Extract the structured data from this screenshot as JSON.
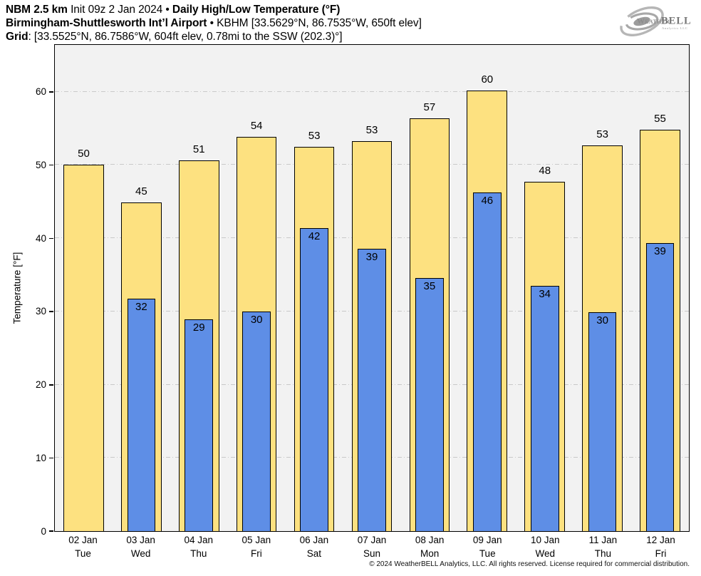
{
  "header": {
    "line1": {
      "bold1": "NBM 2.5 km",
      "regular": " Init 09z 2 Jan 2024 • ",
      "bold2": "Daily High/Low Temperature (°F)"
    },
    "line2": {
      "bold": "Birmingham-Shuttlesworth Int’l Airport",
      "regular": " • KBHM [33.5629°N, 86.7535°W, 650ft elev]"
    },
    "line3": {
      "bold": "Grid",
      "regular": ": [33.5525°N, 86.7586°W, 604ft elev, 0.78mi to the SSW (202.3)°]"
    }
  },
  "logo": {
    "weather": "Weather",
    "bell": "BELL",
    "sub": "Analytics LLC"
  },
  "chart_data": {
    "type": "bar",
    "title": "Daily High/Low Temperature (°F)",
    "ylabel": "Temperature [°F]",
    "ylim": [
      0,
      66.4
    ],
    "yticks": [
      0,
      10,
      20,
      30,
      40,
      50,
      60
    ],
    "grid": "dash-dot horizontal at every 10°F",
    "plot_background": "#f2f2f2",
    "gridline_color": "#c9c9c9",
    "categories": [
      {
        "date": "02 Jan",
        "day": "Tue"
      },
      {
        "date": "03 Jan",
        "day": "Wed"
      },
      {
        "date": "04 Jan",
        "day": "Thu"
      },
      {
        "date": "05 Jan",
        "day": "Fri"
      },
      {
        "date": "06 Jan",
        "day": "Sat"
      },
      {
        "date": "07 Jan",
        "day": "Sun"
      },
      {
        "date": "08 Jan",
        "day": "Mon"
      },
      {
        "date": "09 Jan",
        "day": "Tue"
      },
      {
        "date": "10 Jan",
        "day": "Wed"
      },
      {
        "date": "11 Jan",
        "day": "Thu"
      },
      {
        "date": "12 Jan",
        "day": "Fri"
      }
    ],
    "series": [
      {
        "name": "High",
        "color": "#fde180",
        "labels": [
          50,
          45,
          51,
          54,
          53,
          53,
          57,
          60,
          48,
          53,
          55
        ],
        "values": [
          50.1,
          45.0,
          50.7,
          53.9,
          52.6,
          53.4,
          56.5,
          60.3,
          47.8,
          52.8,
          54.9
        ]
      },
      {
        "name": "Low",
        "color": "#5e8ee6",
        "labels": [
          null,
          32,
          29,
          30,
          42,
          39,
          35,
          46,
          34,
          30,
          39
        ],
        "values": [
          null,
          31.8,
          29.0,
          30.1,
          41.5,
          38.7,
          34.7,
          46.3,
          33.6,
          30.0,
          39.4
        ]
      }
    ]
  },
  "footer": {
    "copyright": "© 2024 WeatherBELL Analytics, LLC. All rights reserved. License required for commercial distribution."
  }
}
